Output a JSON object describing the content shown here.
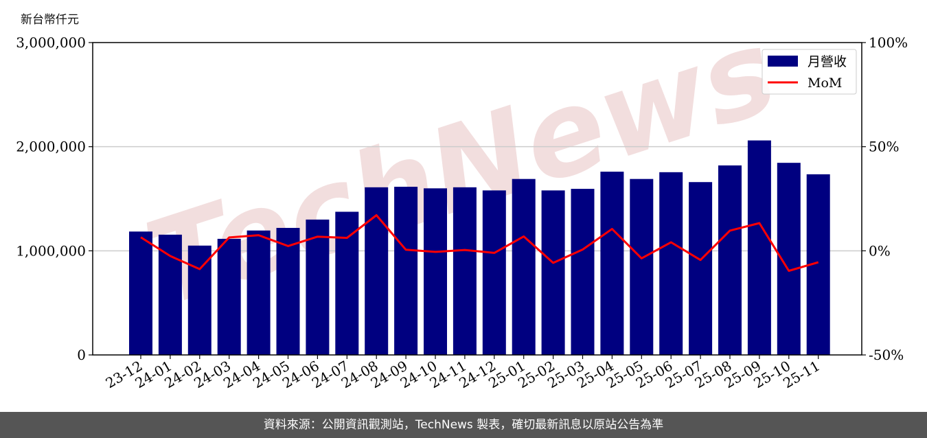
{
  "unit_label": "新台幣仟元",
  "watermark": "TechNews",
  "footer": "資料來源：公開資訊觀測站，TechNews 製表，確切最新訊息以原站公告為準",
  "colors": {
    "bar": "#000080",
    "line": "#ff0000",
    "grid": "#cccccc",
    "watermark": "#f2dede"
  },
  "chart_data": {
    "type": "bar",
    "categories": [
      "23-12",
      "24-01",
      "24-02",
      "24-03",
      "24-04",
      "24-05",
      "24-06",
      "24-07",
      "24-08",
      "24-09",
      "24-10",
      "24-11",
      "24-12",
      "25-01",
      "25-02",
      "25-03",
      "25-04",
      "25-05",
      "25-06",
      "25-07",
      "25-08",
      "25-09",
      "25-10",
      "25-11"
    ],
    "series": [
      {
        "name": "月營收",
        "type": "bar",
        "axis": "left",
        "values": [
          1185000,
          1155000,
          1050000,
          1115000,
          1195000,
          1220000,
          1300000,
          1375000,
          1610000,
          1615000,
          1600000,
          1610000,
          1580000,
          1690000,
          1580000,
          1595000,
          1760000,
          1690000,
          1755000,
          1660000,
          1820000,
          2060000,
          1845000,
          1735000
        ]
      },
      {
        "name": "MoM",
        "type": "line",
        "axis": "right",
        "values": [
          6.5,
          -2.5,
          -8.8,
          6.4,
          7.5,
          2.3,
          6.8,
          6.2,
          17.1,
          0.5,
          -0.5,
          0.4,
          -1.0,
          6.9,
          -5.8,
          0.6,
          10.5,
          -3.6,
          4.1,
          -4.4,
          9.7,
          13.3,
          -9.6,
          -5.5
        ]
      }
    ],
    "yleft": {
      "ylim": [
        0,
        3000000
      ],
      "ticks": [
        0,
        1000000,
        2000000,
        3000000
      ],
      "tick_labels": [
        "0",
        "1,000,000",
        "2,000,000",
        "3,000,000"
      ]
    },
    "yright": {
      "ylim": [
        -50,
        100
      ],
      "ticks": [
        -50,
        0,
        50,
        100
      ],
      "tick_labels": [
        "-50%",
        "0%",
        "50%",
        "100%"
      ]
    },
    "grid": "horizontal",
    "legend_position": "top-right"
  }
}
